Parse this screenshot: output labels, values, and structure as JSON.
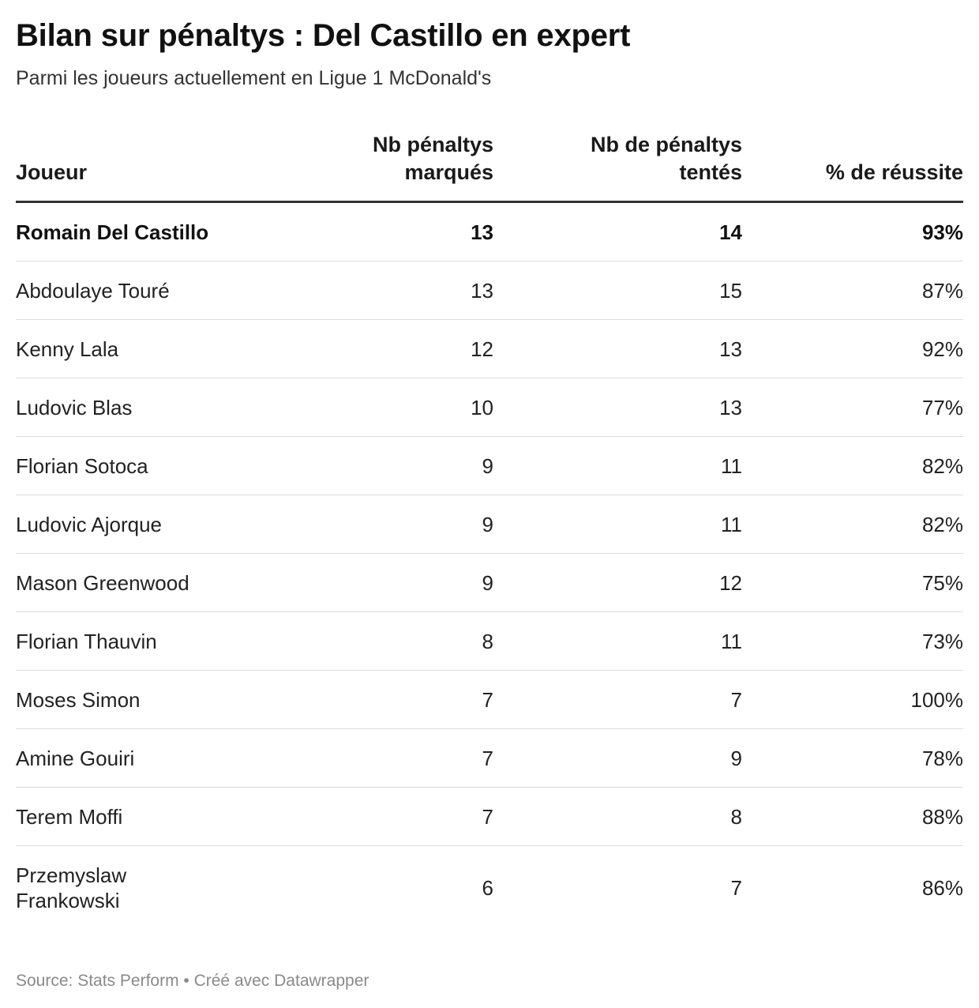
{
  "chart_data": {
    "type": "table",
    "title": "Bilan sur pénaltys : Del Castillo en expert",
    "subtitle": "Parmi les joueurs actuellement en Ligue 1 McDonald's",
    "columns": [
      "Joueur",
      "Nb pénaltys\nmarqués",
      "Nb de pénaltys\ntentés",
      "% de réussite"
    ],
    "rows": [
      {
        "player": "Romain Del Castillo",
        "scored": "13",
        "attempted": "14",
        "pct": "93%",
        "highlight": true
      },
      {
        "player": "Abdoulaye Touré",
        "scored": "13",
        "attempted": "15",
        "pct": "87%"
      },
      {
        "player": "Kenny Lala",
        "scored": "12",
        "attempted": "13",
        "pct": "92%"
      },
      {
        "player": "Ludovic Blas",
        "scored": "10",
        "attempted": "13",
        "pct": "77%"
      },
      {
        "player": "Florian Sotoca",
        "scored": "9",
        "attempted": "11",
        "pct": "82%"
      },
      {
        "player": "Ludovic Ajorque",
        "scored": "9",
        "attempted": "11",
        "pct": "82%"
      },
      {
        "player": "Mason Greenwood",
        "scored": "9",
        "attempted": "12",
        "pct": "75%"
      },
      {
        "player": "Florian Thauvin",
        "scored": "8",
        "attempted": "11",
        "pct": "73%"
      },
      {
        "player": "Moses Simon",
        "scored": "7",
        "attempted": "7",
        "pct": "100%"
      },
      {
        "player": "Amine Gouiri",
        "scored": "7",
        "attempted": "9",
        "pct": "78%"
      },
      {
        "player": "Terem Moffi",
        "scored": "7",
        "attempted": "8",
        "pct": "88%"
      },
      {
        "player": "Przemyslaw\nFrankowski",
        "scored": "6",
        "attempted": "7",
        "pct": "86%"
      }
    ],
    "source": "Source: Stats Perform • Créé avec Datawrapper"
  }
}
